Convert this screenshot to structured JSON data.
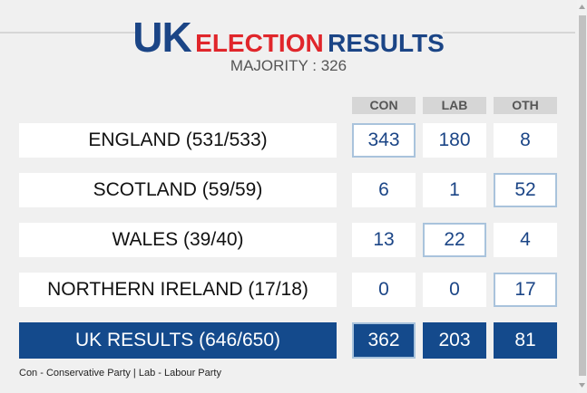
{
  "header": {
    "title_uk": "UK",
    "title_election": "ELECTION",
    "title_results": "RESULTS",
    "majority": "MAJORITY : 326"
  },
  "table": {
    "columns": [
      "CON",
      "LAB",
      "OTH"
    ],
    "rows": [
      {
        "label": "ENGLAND (531/533)",
        "values": [
          343,
          180,
          8
        ]
      },
      {
        "label": "SCOTLAND (59/59)",
        "values": [
          6,
          1,
          52
        ]
      },
      {
        "label": "WALES (39/40)",
        "values": [
          13,
          22,
          4
        ]
      },
      {
        "label": "NORTHERN IRELAND (17/18)",
        "values": [
          0,
          0,
          17
        ]
      }
    ],
    "total": {
      "label": "UK RESULTS (646/650)",
      "values": [
        362,
        203,
        81
      ]
    }
  },
  "footer": "Con - Conservative Party | Lab - Labour Party"
}
